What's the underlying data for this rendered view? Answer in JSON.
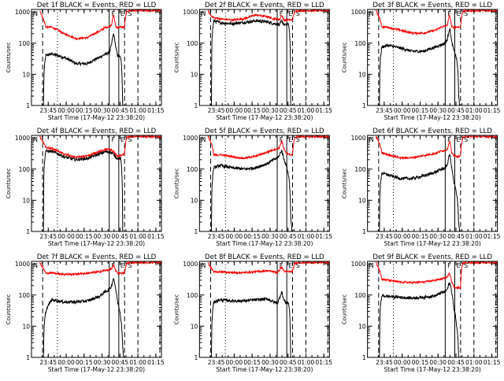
{
  "figure": {
    "background": "#ffffff",
    "events_color": "#000000",
    "lld_color": "#ff0000"
  },
  "chart_data": [
    {
      "type": "line",
      "title": "Det 1f BLACK = Events, RED = LLD",
      "xlabel": "Start Time (17-May-12 23:38:20)",
      "ylabel": "Counts/sec",
      "xtick_labels": [
        "23:45",
        "00:00",
        "00:15",
        "00:30",
        "00:45",
        "01:00",
        "01:15"
      ],
      "ytick_labels": [
        "1",
        "10",
        "100",
        "1000"
      ],
      "xlim": [
        -420,
        6100
      ],
      "ylim": [
        1,
        1200
      ],
      "yscale": "log",
      "region_labels": [
        "N",
        "F",
        "E",
        "S"
      ],
      "series": [
        {
          "name": "Events",
          "x": [
            0,
            180,
            300,
            600,
            1200,
            1800,
            2400,
            3000,
            3300,
            3500,
            3600,
            3700,
            3800,
            3900,
            4050,
            4150,
            4250,
            4300,
            4400
          ],
          "y": [
            0,
            0,
            40,
            45,
            35,
            22,
            22,
            35,
            45,
            50,
            90,
            200,
            75,
            40,
            35,
            0,
            0,
            0,
            0
          ]
        },
        {
          "name": "LLD",
          "x": [
            0,
            120,
            300,
            600,
            1200,
            1800,
            2400,
            3000,
            3300,
            3500,
            3600,
            3700,
            3800,
            3900,
            4050,
            4250,
            4350,
            4500,
            6100
          ],
          "y": [
            1100,
            700,
            330,
            320,
            200,
            140,
            150,
            240,
            320,
            340,
            400,
            800,
            330,
            320,
            330,
            320,
            1000,
            1100,
            1100
          ]
        }
      ]
    },
    {
      "type": "line",
      "title": "Det 2f BLACK = Events, RED = LLD",
      "xlabel": "Start Time (17-May-12 23:38:20)",
      "ylabel": "Counts/sec",
      "xtick_labels": [
        "23:45",
        "00:00",
        "00:15",
        "00:30",
        "00:45",
        "01:00",
        "01:15"
      ],
      "ytick_labels": [
        "1",
        "10",
        "100",
        "1000"
      ],
      "xlim": [
        -420,
        6100
      ],
      "ylim": [
        1,
        1200
      ],
      "yscale": "log",
      "region_labels": [
        "N",
        "F",
        "E",
        "S"
      ],
      "series": [
        {
          "name": "Events",
          "x": [
            0,
            180,
            300,
            600,
            1200,
            1800,
            2400,
            3000,
            3300,
            3500,
            3600,
            3700,
            3800,
            3900,
            4050,
            4150,
            4250
          ],
          "y": [
            0,
            0,
            520,
            450,
            420,
            460,
            520,
            480,
            420,
            420,
            380,
            520,
            400,
            380,
            400,
            0,
            0
          ]
        },
        {
          "name": "LLD",
          "x": [
            0,
            120,
            300,
            600,
            1200,
            1800,
            2400,
            3000,
            3300,
            3500,
            3600,
            3700,
            3800,
            3900,
            4050,
            4250,
            4350,
            4500,
            6100
          ],
          "y": [
            1100,
            800,
            650,
            600,
            550,
            600,
            800,
            700,
            600,
            600,
            560,
            800,
            560,
            550,
            560,
            550,
            1000,
            1100,
            1100
          ]
        }
      ]
    },
    {
      "type": "line",
      "title": "Det 3f BLACK = Events, RED = LLD",
      "xlabel": "Start Time (17-May-12 23:38:20)",
      "ylabel": "Counts/sec",
      "xtick_labels": [
        "23:45",
        "00:00",
        "00:15",
        "00:30",
        "00:45",
        "01:00",
        "01:15"
      ],
      "ytick_labels": [
        "1",
        "10",
        "100",
        "1000"
      ],
      "xlim": [
        -420,
        6100
      ],
      "ylim": [
        1,
        1200
      ],
      "yscale": "log",
      "region_labels": [
        "N",
        "F",
        "E",
        "S"
      ],
      "series": [
        {
          "name": "Events",
          "x": [
            0,
            180,
            300,
            600,
            1200,
            1800,
            2400,
            3000,
            3300,
            3500,
            3600,
            3700,
            3800,
            3900,
            4050,
            4150,
            4250,
            4300,
            4400
          ],
          "y": [
            0,
            0,
            75,
            85,
            70,
            55,
            55,
            75,
            90,
            100,
            140,
            300,
            110,
            60,
            30,
            2,
            0,
            0,
            0
          ]
        },
        {
          "name": "LLD",
          "x": [
            0,
            120,
            300,
            600,
            1200,
            1800,
            2400,
            3000,
            3300,
            3500,
            3600,
            3700,
            3800,
            3900,
            4050,
            4250,
            4350,
            4500,
            6100
          ],
          "y": [
            1100,
            800,
            330,
            320,
            260,
            210,
            210,
            260,
            330,
            350,
            400,
            800,
            330,
            320,
            330,
            320,
            1000,
            1100,
            1100
          ]
        }
      ]
    },
    {
      "type": "line",
      "title": "Det 4f BLACK = Events, RED = LLD",
      "xlabel": "Start Time (17-May-12 23:38:20)",
      "ylabel": "Counts/sec",
      "xtick_labels": [
        "23:45",
        "00:00",
        "00:15",
        "00:30",
        "00:45",
        "01:00",
        "01:15"
      ],
      "ytick_labels": [
        "1",
        "10",
        "100",
        "1000"
      ],
      "xlim": [
        -420,
        6100
      ],
      "ylim": [
        1,
        1200
      ],
      "yscale": "log",
      "region_labels": [
        "N",
        "F",
        "E",
        "S"
      ],
      "series": [
        {
          "name": "Events",
          "x": [
            0,
            180,
            300,
            600,
            1200,
            1800,
            2400,
            3000,
            3300,
            3500,
            3600,
            3700,
            3800,
            3900,
            4050,
            4150,
            4250
          ],
          "y": [
            0,
            0,
            380,
            370,
            250,
            200,
            220,
            310,
            360,
            350,
            330,
            300,
            250,
            220,
            220,
            0,
            0
          ]
        },
        {
          "name": "LLD",
          "x": [
            0,
            120,
            300,
            600,
            1200,
            1800,
            2400,
            3000,
            3300,
            3500,
            3600,
            3700,
            3800,
            3900,
            4050,
            4250,
            4350,
            4500,
            6100
          ],
          "y": [
            1100,
            800,
            480,
            460,
            300,
            240,
            260,
            370,
            430,
            420,
            400,
            360,
            300,
            270,
            270,
            300,
            1000,
            1100,
            1100
          ]
        }
      ]
    },
    {
      "type": "line",
      "title": "Det 5f BLACK = Events, RED = LLD",
      "xlabel": "Start Time (17-May-12 23:38:20)",
      "ylabel": "Counts/sec",
      "xtick_labels": [
        "23:45",
        "00:00",
        "00:15",
        "00:30",
        "00:45",
        "01:00",
        "01:15"
      ],
      "ytick_labels": [
        "1",
        "10",
        "100",
        "1000"
      ],
      "xlim": [
        -420,
        6100
      ],
      "ylim": [
        1,
        1200
      ],
      "yscale": "log",
      "region_labels": [
        "N",
        "F",
        "E",
        "S"
      ],
      "series": [
        {
          "name": "Events",
          "x": [
            0,
            180,
            300,
            600,
            1200,
            1800,
            2400,
            3000,
            3300,
            3500,
            3600,
            3700,
            3800,
            3900,
            4050,
            4150,
            4250,
            4300,
            4400
          ],
          "y": [
            0,
            0,
            110,
            130,
            110,
            100,
            110,
            150,
            200,
            230,
            280,
            400,
            220,
            150,
            60,
            3,
            0,
            0,
            0
          ]
        },
        {
          "name": "LLD",
          "x": [
            0,
            120,
            300,
            600,
            1200,
            1800,
            2400,
            3000,
            3300,
            3500,
            3600,
            3700,
            3800,
            3900,
            4050,
            4250,
            4350,
            4500,
            6100
          ],
          "y": [
            1100,
            800,
            280,
            290,
            250,
            220,
            260,
            350,
            420,
            450,
            500,
            800,
            450,
            350,
            300,
            280,
            1000,
            1100,
            1100
          ]
        }
      ]
    },
    {
      "type": "line",
      "title": "Det 6f BLACK = Events, RED = LLD",
      "xlabel": "Start Time (17-May-12 23:38:20)",
      "ylabel": "Counts/sec",
      "xtick_labels": [
        "23:45",
        "00:00",
        "00:15",
        "00:30",
        "00:45",
        "01:00",
        "01:15"
      ],
      "ytick_labels": [
        "1",
        "10",
        "100",
        "1000"
      ],
      "xlim": [
        -420,
        6100
      ],
      "ylim": [
        1,
        1200
      ],
      "yscale": "log",
      "region_labels": [
        "N",
        "F",
        "E",
        "S"
      ],
      "series": [
        {
          "name": "Events",
          "x": [
            0,
            180,
            300,
            600,
            1200,
            1800,
            2400,
            3000,
            3300,
            3500,
            3600,
            3700,
            3800,
            3900,
            4050,
            4150,
            4250,
            4300,
            4400
          ],
          "y": [
            0,
            0,
            75,
            65,
            50,
            50,
            60,
            80,
            100,
            110,
            150,
            300,
            110,
            40,
            15,
            2,
            0,
            0,
            0
          ]
        },
        {
          "name": "LLD",
          "x": [
            0,
            120,
            300,
            600,
            1200,
            1800,
            2400,
            3000,
            3300,
            3500,
            3600,
            3700,
            3800,
            3900,
            4050,
            4250,
            4350,
            4500,
            6100
          ],
          "y": [
            1100,
            800,
            330,
            290,
            230,
            230,
            270,
            320,
            380,
            400,
            450,
            800,
            320,
            280,
            250,
            260,
            1000,
            1100,
            1100
          ]
        }
      ]
    },
    {
      "type": "line",
      "title": "Det 7f BLACK = Events, RED = LLD",
      "xlabel": "Start Time (17-May-12 23:38:20)",
      "ylabel": "Counts/sec",
      "xtick_labels": [
        "23:45",
        "00:00",
        "00:15",
        "00:30",
        "00:45",
        "01:00",
        "01:15"
      ],
      "ytick_labels": [
        "1",
        "10",
        "100",
        "1000"
      ],
      "xlim": [
        -420,
        6100
      ],
      "ylim": [
        1,
        1200
      ],
      "yscale": "log",
      "region_labels": [
        "N",
        "F",
        "E",
        "S"
      ],
      "series": [
        {
          "name": "Events",
          "x": [
            0,
            180,
            300,
            600,
            1200,
            1800,
            2400,
            3000,
            3300,
            3500,
            3600,
            3700,
            3800,
            3900,
            4050,
            4150,
            4250,
            4300,
            4400
          ],
          "y": [
            0,
            0,
            30,
            70,
            60,
            60,
            65,
            90,
            130,
            150,
            200,
            350,
            150,
            60,
            20,
            2,
            0,
            0,
            0
          ]
        },
        {
          "name": "LLD",
          "x": [
            0,
            120,
            300,
            600,
            1200,
            1800,
            2400,
            3000,
            3300,
            3500,
            3600,
            3700,
            3800,
            3900,
            4050,
            4250,
            4350,
            4500,
            6100
          ],
          "y": [
            1100,
            800,
            500,
            520,
            460,
            470,
            500,
            560,
            620,
            640,
            700,
            900,
            600,
            520,
            500,
            500,
            1000,
            1100,
            1100
          ]
        }
      ]
    },
    {
      "type": "line",
      "title": "Det 8f BLACK = Events, RED = LLD",
      "xlabel": "Start Time (17-May-12 23:38:20)",
      "ylabel": "Counts/sec",
      "xtick_labels": [
        "23:45",
        "00:00",
        "00:15",
        "00:30",
        "00:45",
        "01:00",
        "01:15"
      ],
      "ytick_labels": [
        "1",
        "10",
        "100",
        "1000"
      ],
      "xlim": [
        -420,
        6100
      ],
      "ylim": [
        1,
        1200
      ],
      "yscale": "log",
      "region_labels": [
        "N",
        "F",
        "E",
        "S"
      ],
      "series": [
        {
          "name": "Events",
          "x": [
            0,
            180,
            300,
            600,
            1200,
            1800,
            2400,
            3000,
            3300,
            3500,
            3600,
            3700,
            3800,
            3900,
            4050,
            4150,
            4250
          ],
          "y": [
            0,
            0,
            60,
            70,
            65,
            65,
            70,
            75,
            60,
            55,
            80,
            130,
            70,
            60,
            55,
            0,
            0
          ]
        },
        {
          "name": "LLD",
          "x": [
            0,
            120,
            300,
            600,
            1200,
            1800,
            2400,
            3000,
            3300,
            3500,
            3600,
            3700,
            3800,
            3900,
            4050,
            4250,
            4350,
            4500,
            6100
          ],
          "y": [
            1100,
            800,
            550,
            560,
            520,
            520,
            560,
            600,
            560,
            520,
            650,
            800,
            600,
            560,
            560,
            560,
            1000,
            1100,
            1100
          ]
        }
      ]
    },
    {
      "type": "line",
      "title": "Det 9f BLACK = Events, RED = LLD",
      "xlabel": "Start Time (17-May-12 23:38:20)",
      "ylabel": "Counts/sec",
      "xtick_labels": [
        "23:45",
        "00:00",
        "00:15",
        "00:30",
        "00:45",
        "01:00",
        "01:15"
      ],
      "ytick_labels": [
        "1",
        "10",
        "100",
        "1000"
      ],
      "xlim": [
        -420,
        6100
      ],
      "ylim": [
        1,
        1200
      ],
      "yscale": "log",
      "region_labels": [
        "N",
        "F",
        "E",
        "S"
      ],
      "series": [
        {
          "name": "Events",
          "x": [
            0,
            180,
            300,
            600,
            1200,
            1800,
            2400,
            3000,
            3300,
            3500,
            3600,
            3700,
            3800,
            3900,
            4050,
            4150,
            4250,
            4300,
            4400
          ],
          "y": [
            0,
            0,
            95,
            90,
            85,
            80,
            85,
            95,
            120,
            130,
            160,
            250,
            130,
            40,
            10,
            1,
            0,
            0,
            0
          ]
        },
        {
          "name": "LLD",
          "x": [
            0,
            120,
            300,
            600,
            1200,
            1800,
            2400,
            3000,
            3300,
            3500,
            3600,
            3700,
            3800,
            3900,
            4050,
            4250,
            4350,
            4500,
            6100
          ],
          "y": [
            1100,
            800,
            320,
            300,
            260,
            250,
            260,
            300,
            330,
            350,
            400,
            500,
            280,
            190,
            170,
            170,
            1000,
            1100,
            1100
          ]
        }
      ]
    }
  ]
}
